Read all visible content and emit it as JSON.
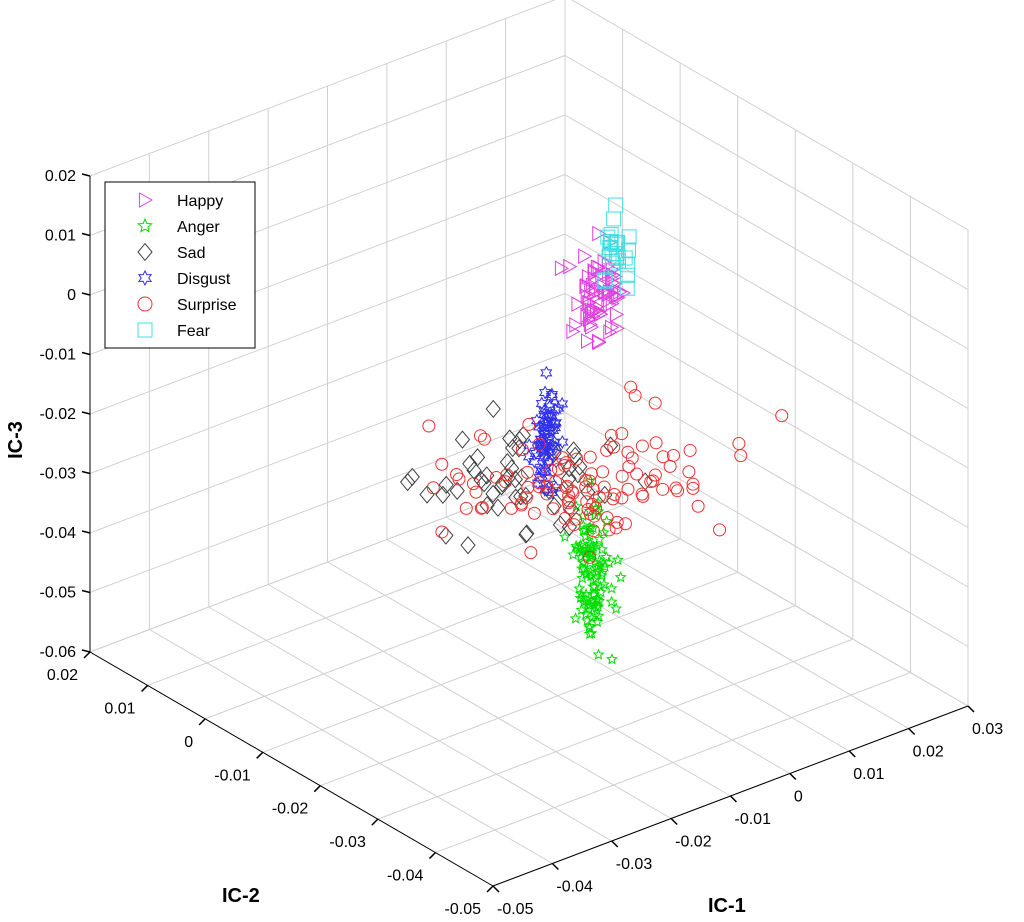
{
  "chart_data": {
    "type": "scatter",
    "title": "",
    "xlabel": "IC-1",
    "ylabel": "IC-2",
    "zlabel": "IC-3",
    "x_ticks": [
      "-0.05",
      "-0.04",
      "-0.03",
      "-0.02",
      "-0.01",
      "0",
      "0.01",
      "0.02",
      "0.03"
    ],
    "y_ticks": [
      "-0.05",
      "-0.04",
      "-0.03",
      "-0.02",
      "-0.01",
      "0",
      "0.01",
      "0.02"
    ],
    "z_ticks": [
      "0.02",
      "0.01",
      "0",
      "-0.01",
      "-0.02",
      "-0.03",
      "-0.04",
      "-0.05",
      "-0.06"
    ],
    "xlim": [
      -0.05,
      0.03
    ],
    "ylim": [
      -0.05,
      0.02
    ],
    "zlim": [
      -0.06,
      0.02
    ],
    "grid": true,
    "legend_position": "top-left",
    "series": [
      {
        "name": "Happy",
        "marker": "triangle-right",
        "color": "#e040e0",
        "center": [
          -0.003,
          -0.02,
          0.005
        ],
        "spread": [
          0.0015,
          0.0015,
          0.004
        ],
        "count": 70
      },
      {
        "name": "Anger",
        "marker": "star",
        "color": "#00dd00",
        "center": [
          -0.004,
          -0.02,
          -0.042
        ],
        "spread": [
          0.0012,
          0.0012,
          0.006
        ],
        "count": 110
      },
      {
        "name": "Sad",
        "marker": "diamond",
        "color": "#404040",
        "center": [
          -0.01,
          -0.012,
          -0.028
        ],
        "spread": [
          0.008,
          0.005,
          0.003
        ],
        "count": 55
      },
      {
        "name": "Disgust",
        "marker": "hexagram",
        "color": "#3030ee",
        "center": [
          -0.006,
          -0.014,
          -0.022
        ],
        "spread": [
          0.0008,
          0.0008,
          0.0045
        ],
        "count": 70
      },
      {
        "name": "Surprise",
        "marker": "circle",
        "color": "#ee3030",
        "center": [
          -0.002,
          -0.018,
          -0.028
        ],
        "spread": [
          0.009,
          0.006,
          0.0035
        ],
        "count": 110
      },
      {
        "name": "Fear",
        "marker": "square",
        "color": "#40e0e0",
        "center": [
          -0.002,
          -0.022,
          0.012
        ],
        "spread": [
          0.0008,
          0.0008,
          0.003
        ],
        "count": 25
      }
    ]
  }
}
